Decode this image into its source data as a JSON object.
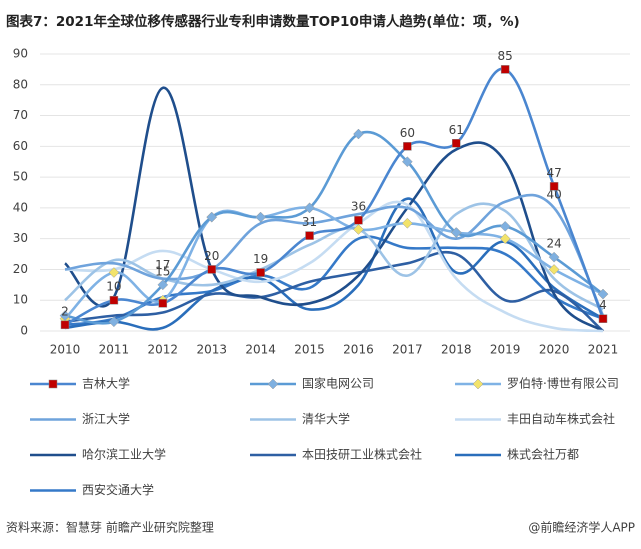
{
  "chart_data": {
    "type": "line",
    "title": "图表7：2021年全球位移传感器行业专利申请数量TOP10申请人趋势(单位：项，%)",
    "source": "资料来源：智慧芽 前瞻产业研究院整理",
    "brand": "@前瞻经济学人APP",
    "categories": [
      "2010",
      "2011",
      "2012",
      "2013",
      "2014",
      "2015",
      "2016",
      "2017",
      "2018",
      "2019",
      "2020",
      "2021"
    ],
    "ylim": [
      0,
      90
    ],
    "yticks": [
      0,
      10,
      20,
      30,
      40,
      50,
      60,
      70,
      80,
      90
    ],
    "series": [
      {
        "name": "吉林大学",
        "color": "#4a86d0",
        "marker": "square",
        "marker_color": "#c00000",
        "values": [
          2,
          10,
          9,
          20,
          19,
          31,
          36,
          60,
          61,
          85,
          47,
          4
        ],
        "value_labels": [
          "2",
          "10",
          null,
          "20",
          "19",
          "31",
          "36",
          "60",
          "61",
          "85",
          "47",
          "4"
        ]
      },
      {
        "name": "国家电网公司",
        "color": "#5b9bd5",
        "marker": "diamond",
        "marker_color": "#7fb0e0",
        "values": [
          5,
          3,
          15,
          37,
          37,
          40,
          64,
          55,
          32,
          34,
          24,
          12
        ],
        "value_labels": [
          null,
          null,
          "15",
          null,
          null,
          null,
          null,
          null,
          null,
          null,
          "24",
          null
        ]
      },
      {
        "name": "罗伯特·博世有限公司",
        "color": "#7fb2e5",
        "marker": "diamond",
        "marker_color": "#f2e36b",
        "values": [
          4,
          19,
          10,
          37,
          37,
          40,
          33,
          35,
          32,
          30,
          20,
          12
        ]
      },
      {
        "name": "浙江大学",
        "color": "#6fa3dc",
        "values": [
          20,
          22,
          17,
          20,
          35,
          35,
          38,
          40,
          30,
          42,
          40,
          5
        ],
        "value_labels": [
          null,
          null,
          "17",
          null,
          null,
          null,
          null,
          null,
          null,
          null,
          "40",
          null
        ]
      },
      {
        "name": "清华大学",
        "color": "#9dc3e6",
        "values": [
          10,
          23,
          17,
          15,
          20,
          28,
          33,
          18,
          38,
          39,
          17,
          7
        ]
      },
      {
        "name": "丰田自动车株式会社",
        "color": "#c5dcf2",
        "values": [
          20,
          20,
          26,
          20,
          16,
          22,
          35,
          41,
          17,
          6,
          1,
          0
        ]
      },
      {
        "name": "哈尔滨工业大学",
        "color": "#1f4e8c",
        "values": [
          22,
          11,
          79,
          20,
          11,
          9,
          18,
          40,
          59,
          55,
          12,
          0
        ]
      },
      {
        "name": "本田技研工业株式会社",
        "color": "#2e5fa3",
        "values": [
          3,
          5,
          6,
          12,
          11,
          16,
          19,
          22,
          25,
          10,
          13,
          0
        ]
      },
      {
        "name": "株式会社万都",
        "color": "#2a6ebb",
        "values": [
          1,
          3,
          1,
          13,
          17,
          7,
          15,
          43,
          19,
          29,
          14,
          4
        ]
      },
      {
        "name": "西安交通大学",
        "color": "#3579c8",
        "values": [
          2,
          4,
          11,
          13,
          18,
          14,
          30,
          27,
          27,
          25,
          11,
          4
        ]
      }
    ]
  }
}
